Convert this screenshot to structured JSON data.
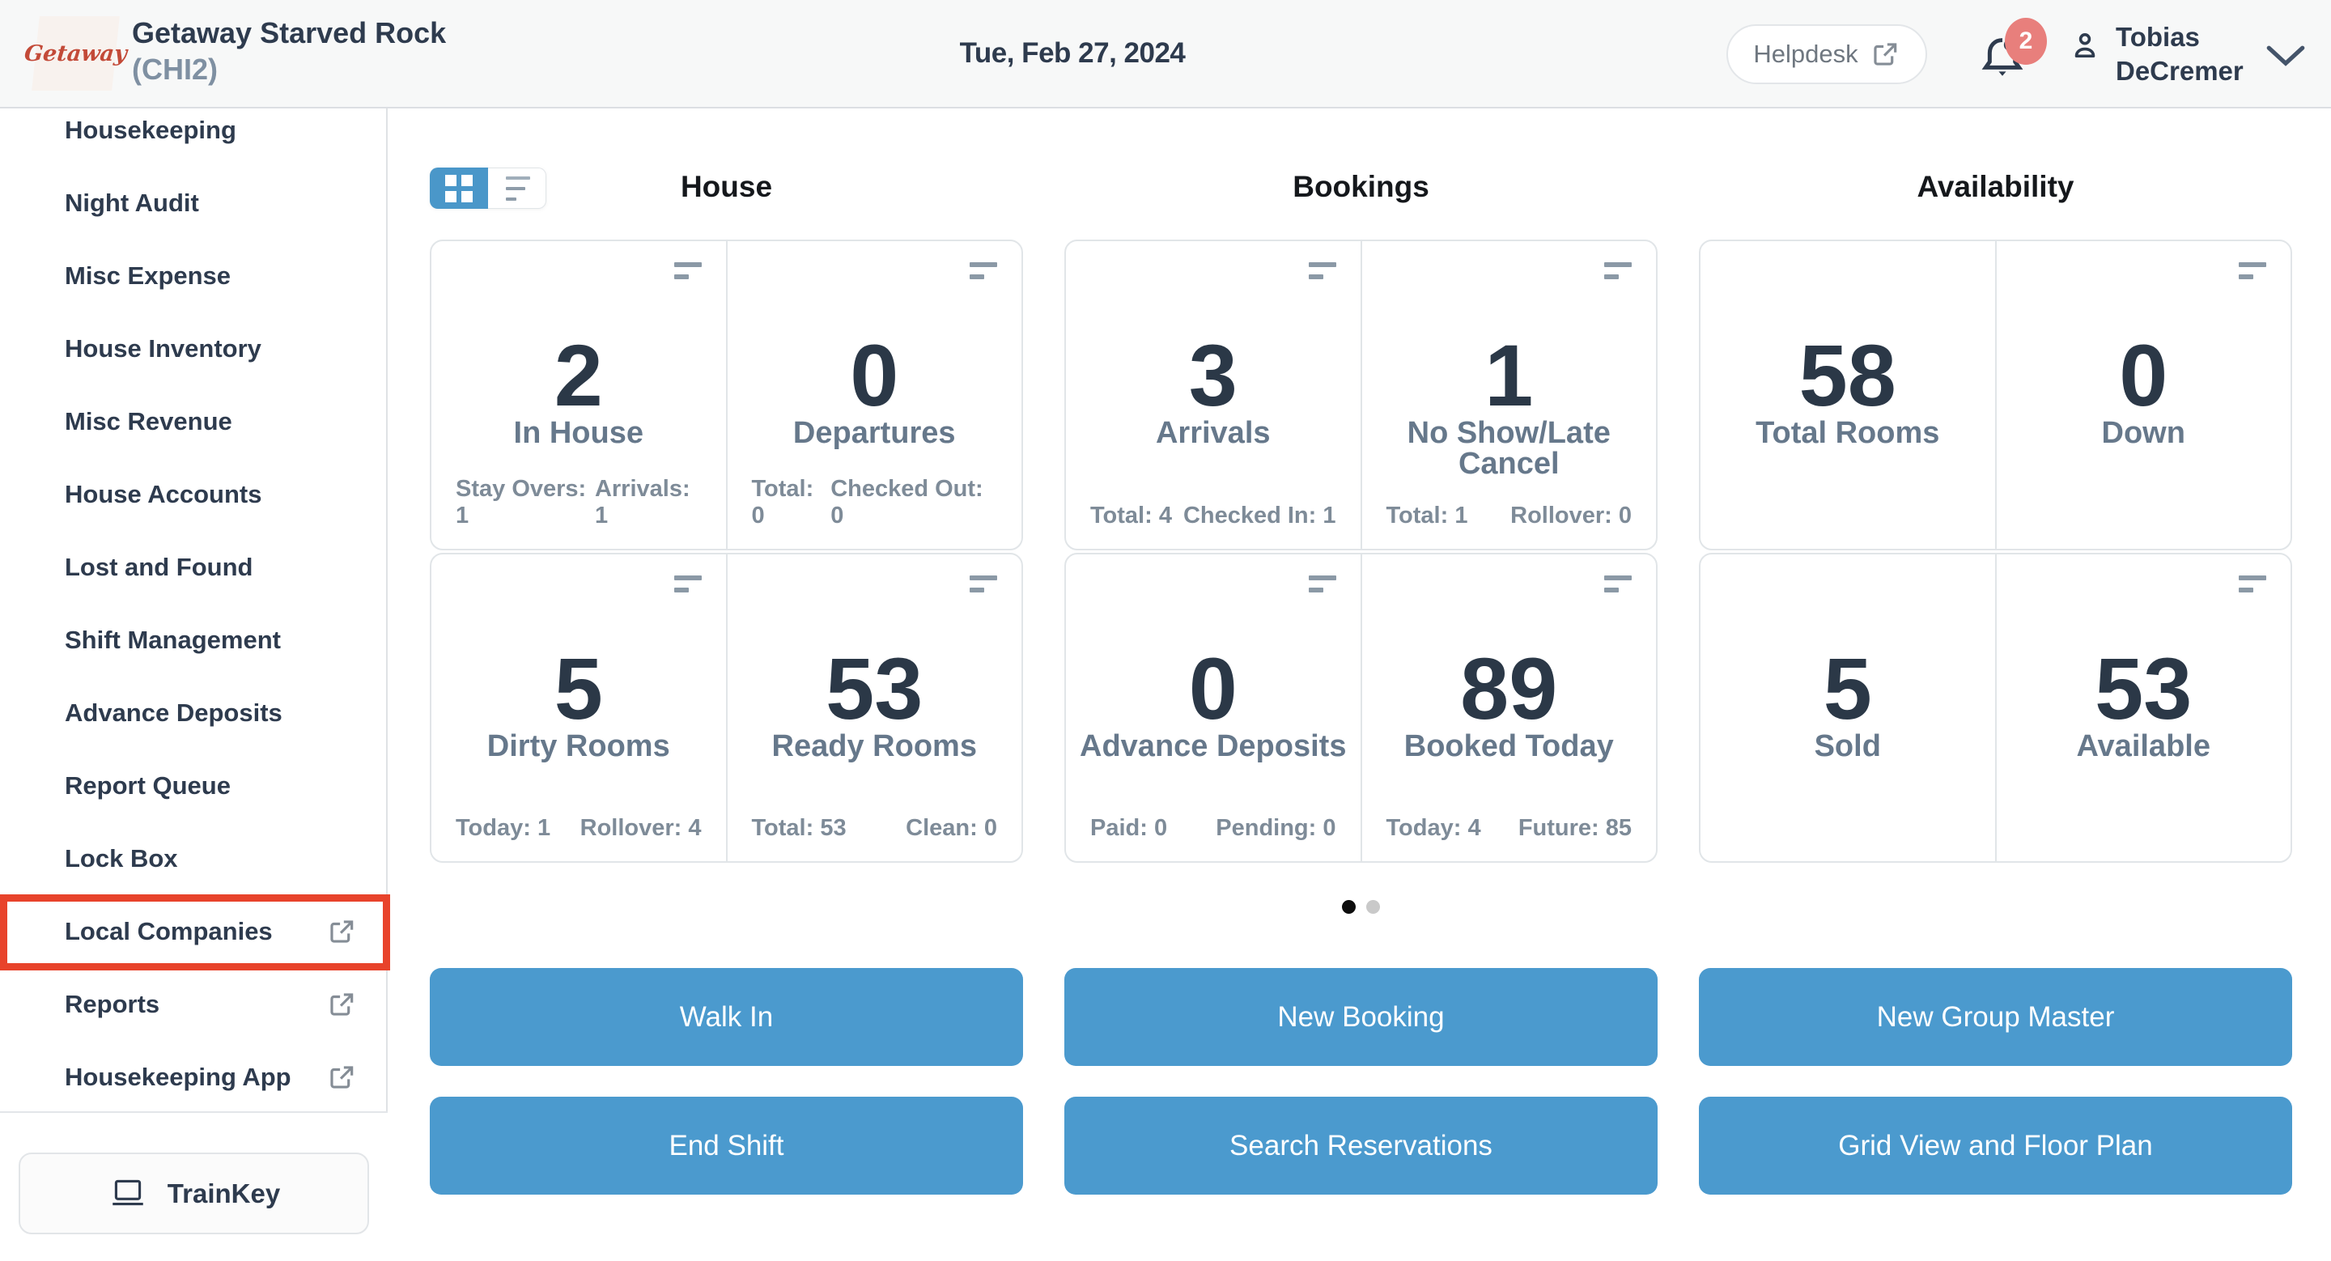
{
  "header": {
    "logo_text": "Getaway",
    "property_name": "Getaway Starved Rock",
    "property_code": "(CHI2)",
    "date": "Tue, Feb 27, 2024",
    "helpdesk_label": "Helpdesk",
    "notification_count": "2",
    "user_first_name": "Tobias",
    "user_last_name": "DeCremer"
  },
  "sidebar": {
    "items": [
      {
        "label": "Housekeeping",
        "external": false,
        "highlighted": false
      },
      {
        "label": "Night Audit",
        "external": false,
        "highlighted": false
      },
      {
        "label": "Misc Expense",
        "external": false,
        "highlighted": false
      },
      {
        "label": "House Inventory",
        "external": false,
        "highlighted": false
      },
      {
        "label": "Misc Revenue",
        "external": false,
        "highlighted": false
      },
      {
        "label": "House Accounts",
        "external": false,
        "highlighted": false
      },
      {
        "label": "Lost and Found",
        "external": false,
        "highlighted": false
      },
      {
        "label": "Shift Management",
        "external": false,
        "highlighted": false
      },
      {
        "label": "Advance Deposits",
        "external": false,
        "highlighted": false
      },
      {
        "label": "Report Queue",
        "external": false,
        "highlighted": false
      },
      {
        "label": "Lock Box",
        "external": false,
        "highlighted": false
      },
      {
        "label": "Local Companies",
        "external": true,
        "highlighted": true
      },
      {
        "label": "Reports",
        "external": true,
        "highlighted": false
      },
      {
        "label": "Housekeeping App",
        "external": true,
        "highlighted": false
      }
    ],
    "trainkey_label": "TrainKey"
  },
  "view_toggle": {
    "active": "grid",
    "options": [
      "grid",
      "list"
    ]
  },
  "dashboard": {
    "groups": [
      {
        "title": "House",
        "rows": [
          [
            {
              "value": "2",
              "label": "In House",
              "stats": [
                "Stay Overs: 1",
                "Arrivals: 1"
              ],
              "icon": true
            },
            {
              "value": "0",
              "label": "Departures",
              "stats": [
                "Total: 0",
                "Checked Out: 0"
              ],
              "icon": true
            }
          ],
          [
            {
              "value": "5",
              "label": "Dirty Rooms",
              "stats": [
                "Today: 1",
                "Rollover: 4"
              ],
              "icon": true
            },
            {
              "value": "53",
              "label": "Ready Rooms",
              "stats": [
                "Total: 53",
                "Clean: 0"
              ],
              "icon": true
            }
          ]
        ]
      },
      {
        "title": "Bookings",
        "rows": [
          [
            {
              "value": "3",
              "label": "Arrivals",
              "stats": [
                "Total: 4",
                "Checked In: 1"
              ],
              "icon": true
            },
            {
              "value": "1",
              "label": "No Show/Late Cancel",
              "stats": [
                "Total: 1",
                "Rollover: 0"
              ],
              "icon": true
            }
          ],
          [
            {
              "value": "0",
              "label": "Advance Deposits",
              "stats": [
                "Paid: 0",
                "Pending: 0"
              ],
              "icon": true
            },
            {
              "value": "89",
              "label": "Booked Today",
              "stats": [
                "Today: 4",
                "Future: 85"
              ],
              "icon": true
            }
          ]
        ]
      },
      {
        "title": "Availability",
        "rows": [
          [
            {
              "value": "58",
              "label": "Total Rooms",
              "stats": null,
              "icon": false
            },
            {
              "value": "0",
              "label": "Down",
              "stats": null,
              "icon": true
            }
          ],
          [
            {
              "value": "5",
              "label": "Sold",
              "stats": null,
              "icon": false
            },
            {
              "value": "53",
              "label": "Available",
              "stats": null,
              "icon": true
            }
          ]
        ]
      }
    ],
    "pagination": {
      "dots": 2,
      "active_index": 0
    }
  },
  "actions": {
    "buttons": [
      [
        "Walk In",
        "New Booking",
        "New Group Master"
      ],
      [
        "End Shift",
        "Search Reservations",
        "Grid View and Floor Plan"
      ]
    ]
  },
  "colors": {
    "accent_blue": "#4b9ace",
    "annotation_red": "#e8432b",
    "badge_red": "#e87f7c",
    "text_dark": "#2e3b4e",
    "text_muted": "#66788b",
    "text_faint": "#7e8b98",
    "header_bg": "#f7f8f8"
  }
}
